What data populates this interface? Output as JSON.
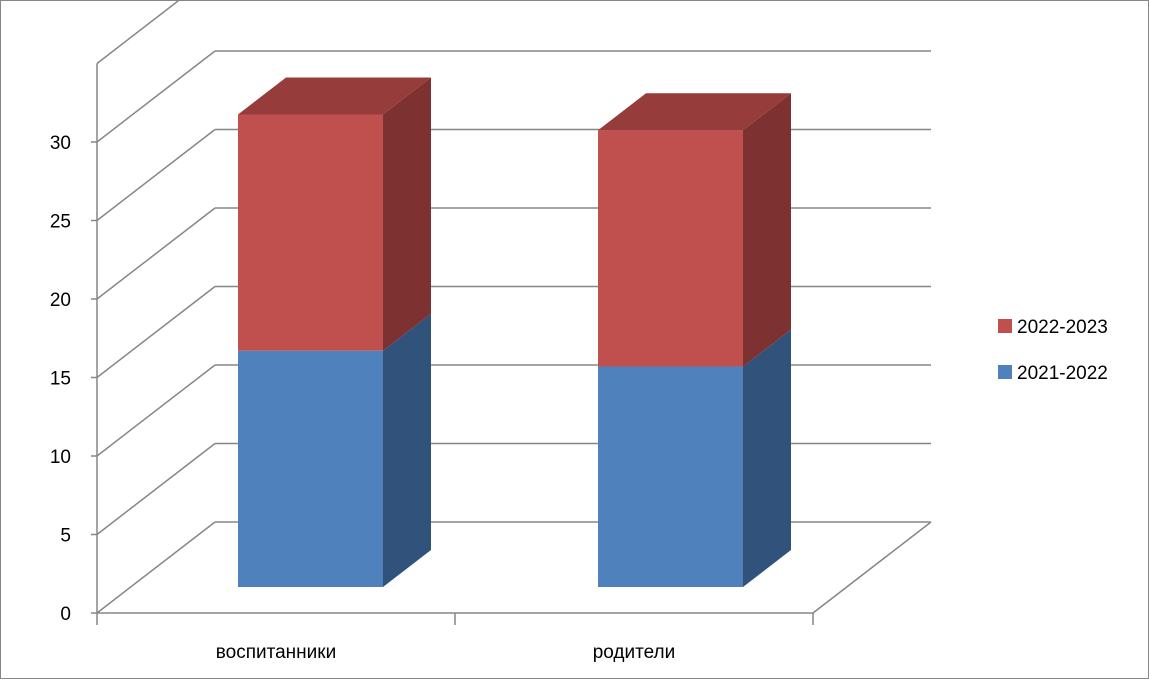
{
  "chart_data": {
    "type": "bar",
    "stacked": true,
    "three_d": true,
    "categories": [
      "воспитанники",
      "родители"
    ],
    "series": [
      {
        "name": "2021-2022",
        "values": [
          15,
          14
        ],
        "color": "#4F81BD",
        "side_color": "#31527A"
      },
      {
        "name": "2022-2023",
        "values": [
          15,
          15
        ],
        "color": "#C0504D",
        "side_color": "#7D3130",
        "top_color": "#963C3A"
      }
    ],
    "y_ticks": [
      "0",
      "5",
      "10",
      "15",
      "20",
      "25",
      "30"
    ],
    "ylim": [
      0,
      35
    ],
    "grid": true,
    "legend": "right",
    "title": "",
    "xlabel": "",
    "ylabel": ""
  }
}
